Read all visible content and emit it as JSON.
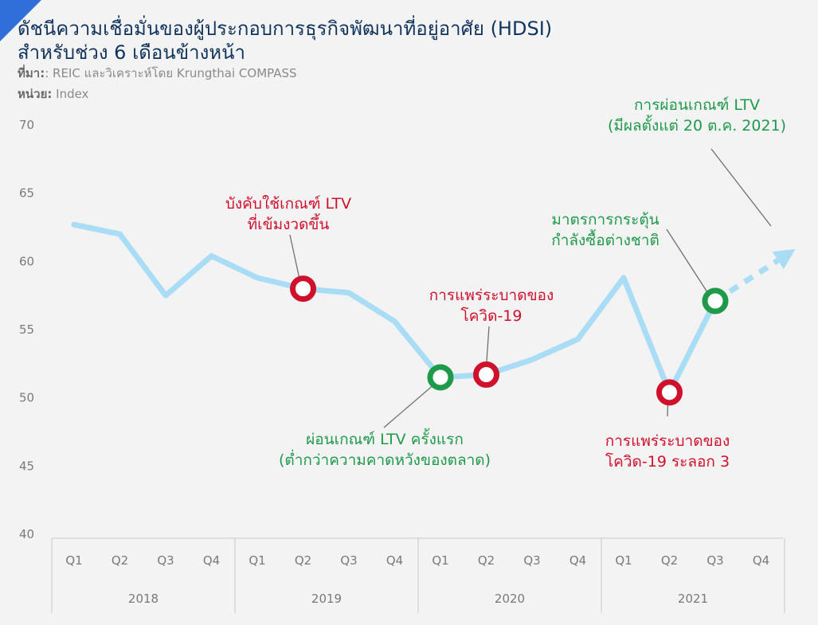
{
  "title_line1": "ดัชนีความเชื่อมั่นของผู้ประกอบการธุรกิจพัฒนาที่อยู่อาศัย (HDSI)",
  "title_line2": "สำหรับช่วง 6 เดือนข้างหน้า",
  "source_label": "ที่มา:",
  "source_text": ": REIC และวิเคราะห์โดย Krungthai COMPASS",
  "unit_label": "หน่วย:",
  "unit_text": "Index",
  "colors": {
    "line": "#a9dcf5",
    "red": "#d0112b",
    "green": "#1f9a4a",
    "title": "#10345c"
  },
  "chart_data": {
    "type": "line",
    "title": "ดัชนีความเชื่อมั่นของผู้ประกอบการธุรกิจพัฒนาที่อยู่อาศัย (HDSI) สำหรับช่วง 6 เดือนข้างหน้า",
    "ylabel": "Index",
    "ylim": [
      40,
      70
    ],
    "yticks": [
      70,
      65,
      60,
      55,
      50,
      45,
      40
    ],
    "grid": false,
    "quarters": [
      "Q1",
      "Q2",
      "Q3",
      "Q4",
      "Q1",
      "Q2",
      "Q3",
      "Q4",
      "Q1",
      "Q2",
      "Q3",
      "Q4",
      "Q1",
      "Q2",
      "Q3",
      "Q4"
    ],
    "years": [
      "2018",
      "2019",
      "2020",
      "2021"
    ],
    "series": [
      {
        "values": [
          62.7,
          62.0,
          57.5,
          60.4,
          58.8,
          58.0,
          57.7,
          55.6,
          51.5,
          51.7,
          52.8,
          54.3,
          58.8,
          50.4,
          57.1,
          null
        ]
      }
    ],
    "projection": {
      "from_index": 14,
      "to_index": 15.75,
      "to_value": 60.9
    },
    "markers": [
      {
        "index": 5,
        "value": 58.0,
        "color": "red"
      },
      {
        "index": 8,
        "value": 51.5,
        "color": "green"
      },
      {
        "index": 9,
        "value": 51.7,
        "color": "red"
      },
      {
        "index": 13,
        "value": 50.4,
        "color": "red"
      },
      {
        "index": 14,
        "value": 57.1,
        "color": "green"
      }
    ],
    "annotations": [
      {
        "lines": [
          "บังคับใช้เกณฑ์ LTV",
          "ที่เข้มงวดขึ้น"
        ],
        "color": "red"
      },
      {
        "lines": [
          "การแพร่ระบาดของ",
          "โควิด-19"
        ],
        "color": "red"
      },
      {
        "lines": [
          "ผ่อนเกณฑ์ LTV ครั้งแรก",
          "(ต่ำกว่าความคาดหวังของตลาด)"
        ],
        "color": "green"
      },
      {
        "lines": [
          "การแพร่ระบาดของ",
          "โควิด-19 ระลอก 3"
        ],
        "color": "red"
      },
      {
        "lines": [
          "มาตรการกระตุ้น",
          "กำลังซื้อต่างชาติ"
        ],
        "color": "green"
      },
      {
        "lines": [
          "การผ่อนเกณฑ์ LTV",
          "(มีผลตั้งแต่ 20 ต.ค. 2021)"
        ],
        "color": "green"
      }
    ]
  }
}
